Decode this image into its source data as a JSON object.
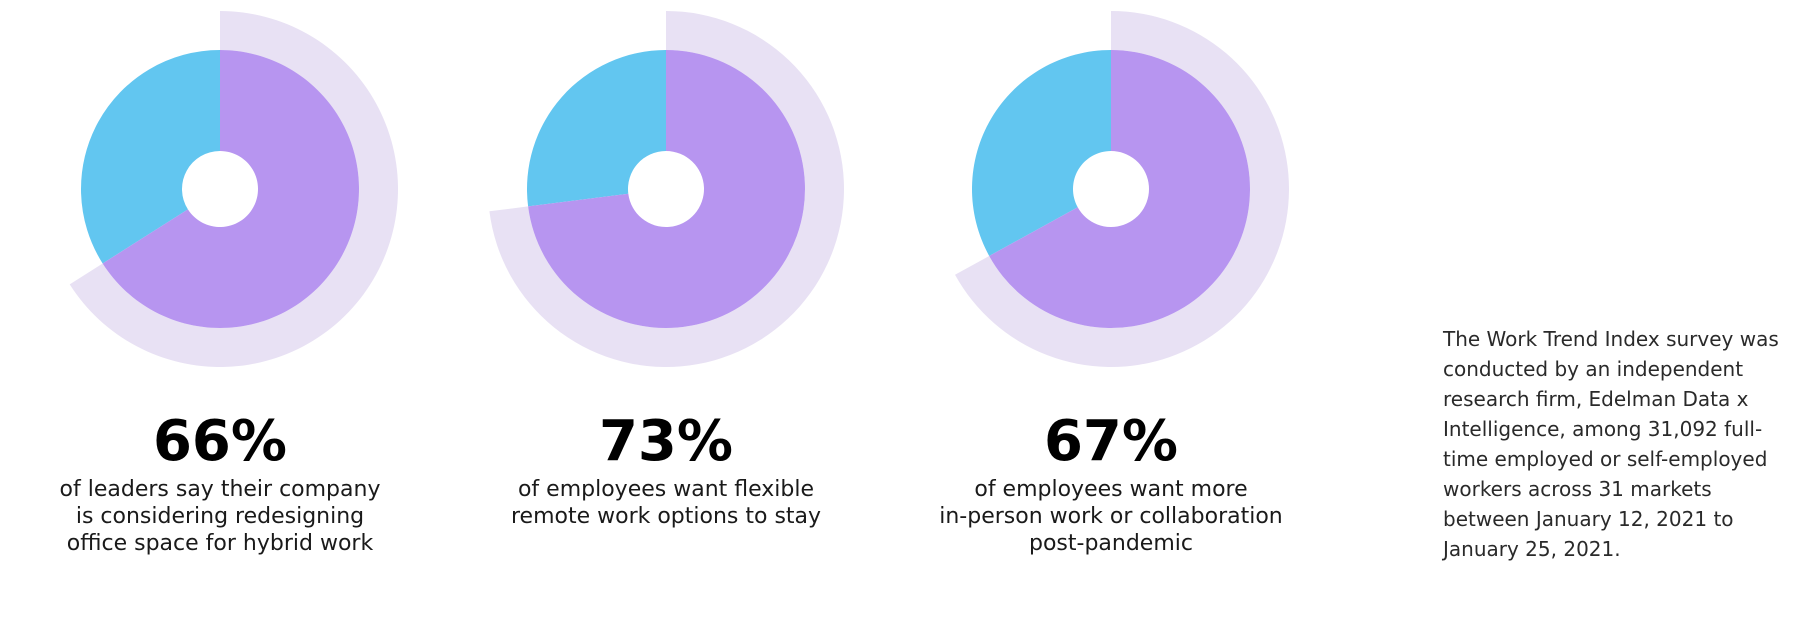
{
  "chart_data": [
    {
      "type": "donut",
      "values": [
        66
      ],
      "value_labels": [
        "66%"
      ],
      "caption": [
        "of leaders say their company",
        "is considering redesigning",
        "office space for hybrid work"
      ],
      "colors": [
        "#b795f0",
        "#62c6f0"
      ],
      "ring_color": "#e8e1f4"
    },
    {
      "type": "donut",
      "values": [
        73
      ],
      "value_labels": [
        "73%"
      ],
      "caption": [
        "of employees want flexible",
        "remote work options to stay"
      ],
      "colors": [
        "#b795f0",
        "#62c6f0"
      ],
      "ring_color": "#e8e1f4"
    },
    {
      "type": "donut",
      "values": [
        67
      ],
      "value_labels": [
        "67%"
      ],
      "caption": [
        "of employees want more",
        "in-person work or collaboration",
        "post-pandemic"
      ],
      "colors": [
        "#b795f0",
        "#62c6f0"
      ],
      "ring_color": "#e8e1f4"
    }
  ],
  "note": [
    "The Work Trend Index survey was",
    "conducted by an independent",
    "research firm, Edelman Data x",
    "Intelligence, among 31,092 full-",
    "time employed or self-employed",
    "workers across 31 markets",
    "between January 12, 2021 to",
    "January 25, 2021."
  ]
}
